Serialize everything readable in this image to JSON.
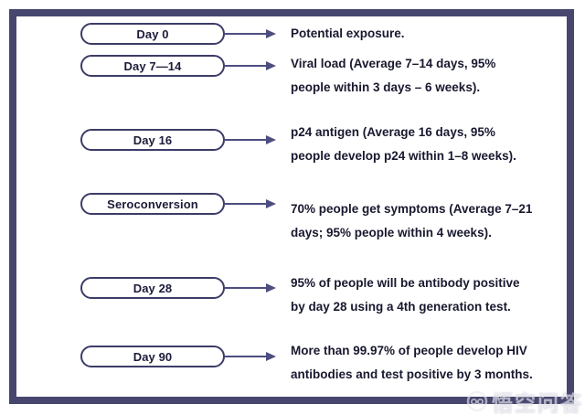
{
  "diagram": {
    "topic": "HIV testing window timeline",
    "rows": [
      {
        "label": "Day 0",
        "description": "Potential exposure."
      },
      {
        "label": "Day 7—14",
        "description": "Viral load  (Average 7–14 days, 95%\npeople within 3 days – 6 weeks)."
      },
      {
        "label": "Day 16",
        "description": "p24 antigen (Average 16 days, 95%\npeople develop p24 within 1–8 weeks)."
      },
      {
        "label": "Seroconversion",
        "description": "70% people get symptoms (Average 7–21\ndays; 95% people within 4 weeks)."
      },
      {
        "label": "Day 28",
        "description": "95% of people will be antibody positive\nby day 28 using a 4th generation test."
      },
      {
        "label": "Day 90",
        "description": "More than 99.97% of people develop HIV\nantibodies and test positive by 3 months."
      }
    ]
  },
  "watermark": {
    "text": "悟空问答"
  },
  "colors": {
    "frame_navy": "#46466f",
    "oval_border_navy": "#3c3c68",
    "arrow_navy": "#4d4d80",
    "text_ink": "#18182f"
  }
}
